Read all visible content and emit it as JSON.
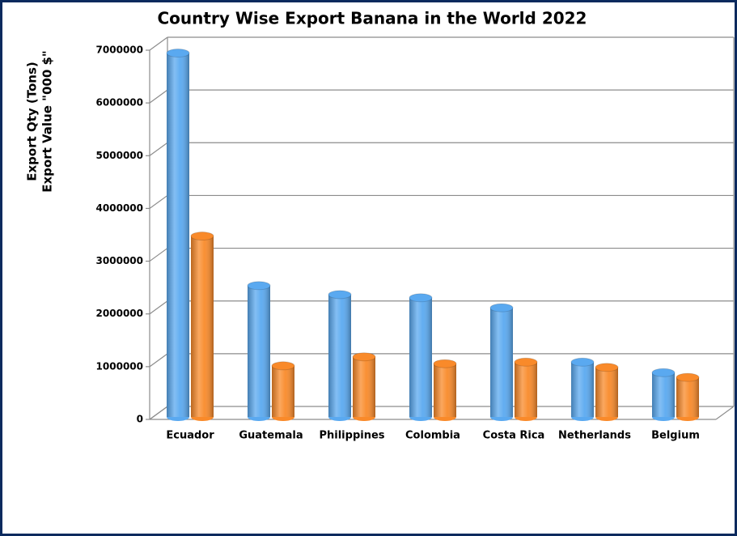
{
  "chart_data": {
    "type": "bar",
    "title": "Country Wise Export Banana in the World 2022",
    "y_label": [
      "Export Qty (Tons)",
      "Export Value \"000 $\""
    ],
    "categories": [
      "Ecuador",
      "Guatemala",
      "Philippines",
      "Colombia",
      "Costa Rica",
      "Netherlands",
      "Belgium"
    ],
    "series": [
      {
        "color": "#5aa9f0",
        "values": [
          6900000,
          2490000,
          2320000,
          2260000,
          2070000,
          1040000,
          840000
        ]
      },
      {
        "color": "#f98a2a",
        "values": [
          3430000,
          970000,
          1140000,
          1010000,
          1040000,
          940000,
          750000
        ]
      }
    ],
    "ylim": [
      0,
      7000000
    ],
    "yticks": [
      0,
      1000000,
      2000000,
      3000000,
      4000000,
      5000000,
      6000000,
      7000000
    ],
    "grid": true
  }
}
